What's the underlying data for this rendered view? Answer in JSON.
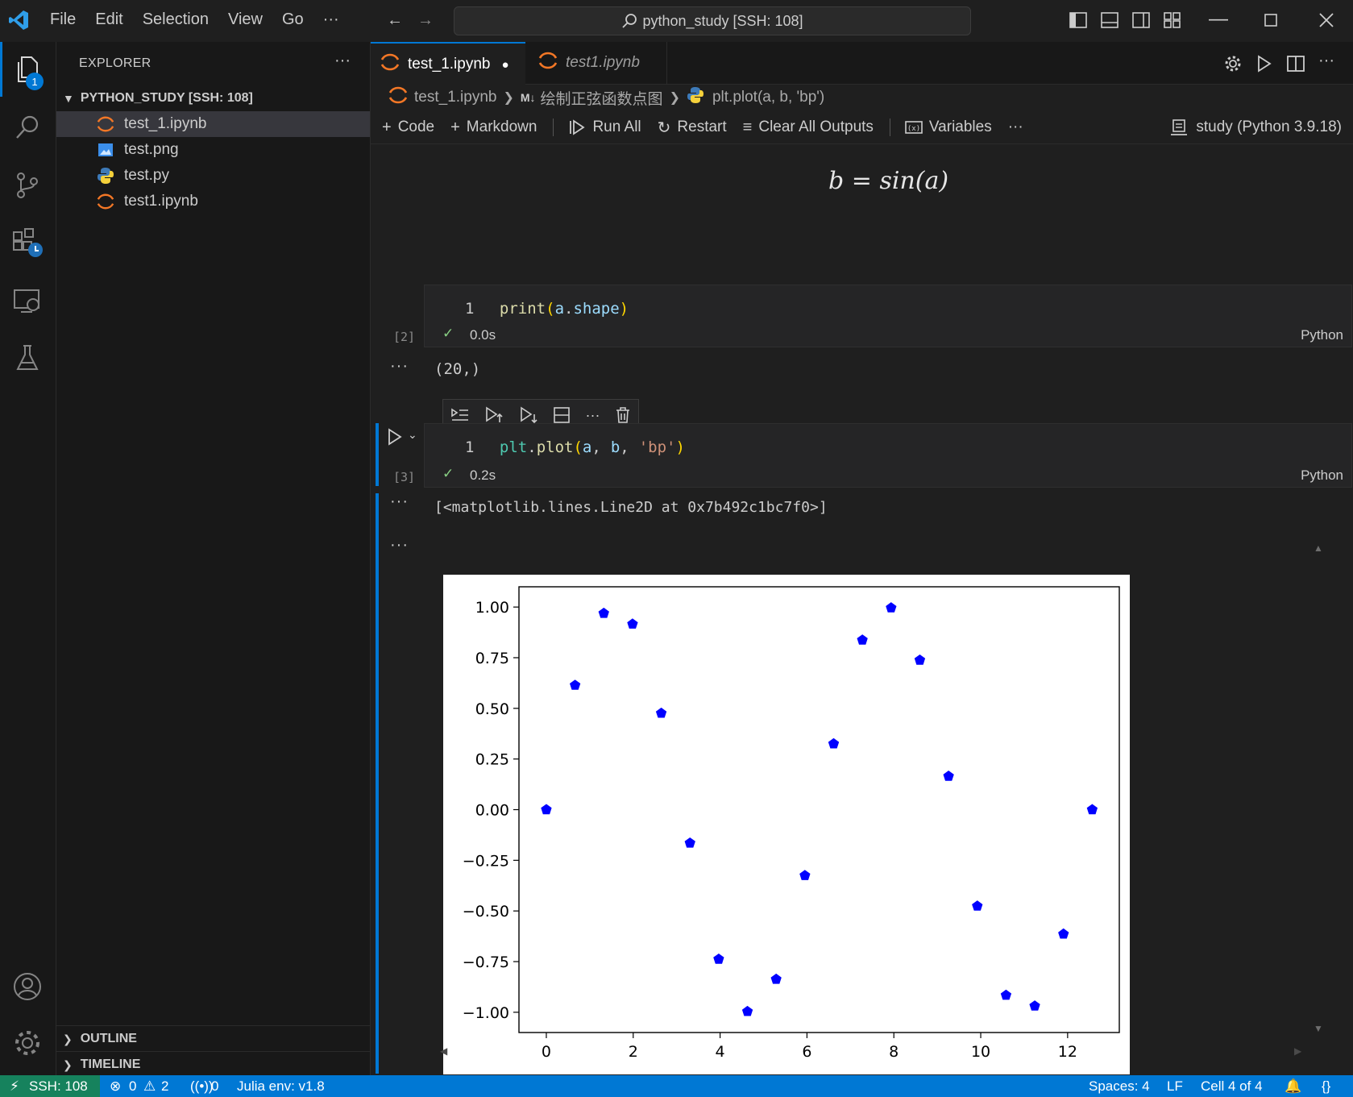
{
  "titlebar": {
    "menu": [
      "File",
      "Edit",
      "Selection",
      "View",
      "Go",
      "···"
    ],
    "search": "python_study [SSH: 108]"
  },
  "activitybar": {
    "explorer_badge": "1"
  },
  "sidebar": {
    "title": "EXPLORER",
    "more": "···",
    "folder": "PYTHON_STUDY [SSH: 108]",
    "files": [
      {
        "name": "test_1.ipynb",
        "icon": "jupyter-icon"
      },
      {
        "name": "test.png",
        "icon": "image-icon"
      },
      {
        "name": "test.py",
        "icon": "python-icon"
      },
      {
        "name": "test1.ipynb",
        "icon": "jupyter-icon"
      }
    ],
    "outline": "OUTLINE",
    "timeline": "TIMELINE"
  },
  "tabs": [
    {
      "label": "test_1.ipynb",
      "active": true,
      "modified_dot": "●"
    },
    {
      "label": "test1.ipynb",
      "active": false
    }
  ],
  "breadcrumb": {
    "file": "test_1.ipynb",
    "md_badge": "M↓",
    "section": "绘制正弦函数点图",
    "symbol": "plt.plot(a, b, 'bp')"
  },
  "toolbar": {
    "code": "Code",
    "markdown": "Markdown",
    "run_all": "Run All",
    "restart": "Restart",
    "clear": "Clear All Outputs",
    "variables": "Variables",
    "more": "···",
    "kernel": "study (Python 3.9.18)"
  },
  "cells": {
    "math_b": "b",
    "math_eq": "=",
    "math_rhs": "sin(a)",
    "c2": {
      "line_no": "1",
      "fn": "print",
      "open": "(",
      "arg1": "a",
      "dot": ".",
      "arg2": "shape",
      "close": ")",
      "count": "[2]",
      "check": "✓",
      "time": "0.0s",
      "lang": "Python"
    },
    "c2_output": "(20,)",
    "c3": {
      "line_no": "1",
      "obj": "plt",
      "dot": ".",
      "fn": "plot",
      "open": "(",
      "a": "a",
      "comma1": ",",
      "b": "b",
      "comma2": ",",
      "str": "'bp'",
      "close": ")",
      "count": "[3]",
      "check": "✓",
      "time": "0.2s",
      "lang": "Python"
    },
    "c3_output_text": "[<matplotlib.lines.Line2D at 0x7b492c1bc7f0>]",
    "dots": "···"
  },
  "chart_data": {
    "type": "scatter",
    "marker": "pentagon",
    "color": "#0000ff",
    "x": [
      0,
      0.6614,
      1.3228,
      1.9842,
      2.6456,
      3.3069,
      3.9683,
      4.6297,
      5.2911,
      5.9525,
      6.6139,
      7.2753,
      7.9367,
      8.5981,
      9.2595,
      9.9208,
      10.5822,
      11.2436,
      11.905,
      12.5664
    ],
    "y": [
      0.0,
      0.614,
      0.969,
      0.916,
      0.476,
      -0.165,
      -0.738,
      -0.996,
      -0.837,
      -0.325,
      0.325,
      0.837,
      0.996,
      0.738,
      0.165,
      -0.476,
      -0.916,
      -0.969,
      -0.614,
      0.0
    ],
    "xticks": [
      0,
      2,
      4,
      6,
      8,
      10,
      12
    ],
    "xtick_labels": [
      "0",
      "2",
      "4",
      "6",
      "8",
      "10",
      "12"
    ],
    "yticks": [
      1.0,
      0.75,
      0.5,
      0.25,
      0.0,
      -0.25,
      -0.5,
      -0.75,
      -1.0
    ],
    "ytick_labels": [
      "1.00",
      "0.75",
      "0.50",
      "0.25",
      "0.00",
      "−0.25",
      "−0.50",
      "−0.75",
      "−1.00"
    ],
    "xlim": [
      -0.63,
      13.19
    ],
    "ylim": [
      -1.1,
      1.1
    ],
    "grid": false
  },
  "statusbar": {
    "ssh": "SSH: 108",
    "errors": "0",
    "warnings": "2",
    "ports": "0",
    "julia": "Julia env: v1.8",
    "spaces": "Spaces: 4",
    "eol": "LF",
    "cell": "Cell 4 of 4"
  }
}
